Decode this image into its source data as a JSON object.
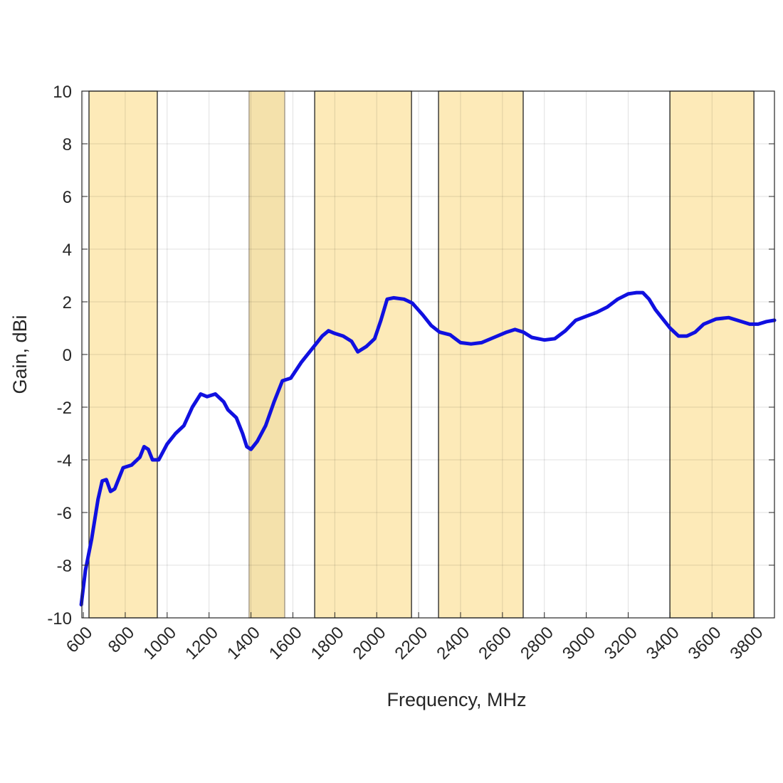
{
  "chart_data": {
    "type": "line",
    "title": "",
    "xlabel": "Frequency, MHz",
    "ylabel": "Gain, dBi",
    "xlim": [
      593,
      3898
    ],
    "ylim": [
      -10,
      10
    ],
    "grid": true,
    "xticks": [
      600,
      800,
      1000,
      1200,
      1400,
      1600,
      1800,
      2000,
      2200,
      2400,
      2600,
      2800,
      3000,
      3200,
      3400,
      3600,
      3800
    ],
    "yticks": [
      -10,
      -8,
      -6,
      -4,
      -2,
      0,
      2,
      4,
      6,
      8,
      10
    ],
    "bands": [
      {
        "start": 627,
        "end": 953,
        "color": "#fde9b4"
      },
      {
        "start": 1391,
        "end": 1561,
        "color": "#f3dfa6"
      },
      {
        "start": 1704,
        "end": 2166,
        "color": "#fde9b4"
      },
      {
        "start": 2295,
        "end": 2699,
        "color": "#fde9b4"
      },
      {
        "start": 3399,
        "end": 3800,
        "color": "#fde9b4"
      }
    ],
    "series": [
      {
        "name": "Gain",
        "color": "#1010e0",
        "x": [
          590,
          610,
          640,
          670,
          690,
          710,
          730,
          750,
          790,
          830,
          870,
          890,
          910,
          930,
          960,
          1000,
          1040,
          1080,
          1120,
          1160,
          1190,
          1230,
          1270,
          1290,
          1330,
          1360,
          1380,
          1400,
          1430,
          1470,
          1510,
          1550,
          1590,
          1640,
          1700,
          1740,
          1770,
          1800,
          1840,
          1880,
          1910,
          1950,
          1990,
          2020,
          2050,
          2080,
          2130,
          2170,
          2220,
          2260,
          2300,
          2350,
          2400,
          2450,
          2500,
          2560,
          2620,
          2660,
          2700,
          2740,
          2800,
          2850,
          2900,
          2950,
          3000,
          3050,
          3100,
          3150,
          3200,
          3240,
          3270,
          3300,
          3330,
          3360,
          3400,
          3440,
          3480,
          3520,
          3560,
          3620,
          3680,
          3720,
          3780,
          3820,
          3860,
          3898
        ],
        "y": [
          -9.5,
          -8.2,
          -7.0,
          -5.5,
          -4.8,
          -4.75,
          -5.2,
          -5.1,
          -4.3,
          -4.2,
          -3.9,
          -3.5,
          -3.6,
          -4.0,
          -4.0,
          -3.4,
          -3.0,
          -2.7,
          -2.0,
          -1.5,
          -1.6,
          -1.5,
          -1.8,
          -2.1,
          -2.4,
          -3.0,
          -3.5,
          -3.6,
          -3.3,
          -2.7,
          -1.8,
          -1.0,
          -0.9,
          -0.3,
          0.3,
          0.7,
          0.9,
          0.8,
          0.7,
          0.5,
          0.1,
          0.3,
          0.6,
          1.3,
          2.1,
          2.15,
          2.1,
          1.95,
          1.5,
          1.1,
          0.85,
          0.75,
          0.45,
          0.4,
          0.45,
          0.65,
          0.85,
          0.95,
          0.85,
          0.65,
          0.55,
          0.6,
          0.9,
          1.3,
          1.45,
          1.6,
          1.8,
          2.1,
          2.3,
          2.35,
          2.35,
          2.1,
          1.7,
          1.4,
          1.0,
          0.7,
          0.7,
          0.85,
          1.15,
          1.35,
          1.4,
          1.3,
          1.15,
          1.15,
          1.25,
          1.3
        ]
      }
    ]
  }
}
